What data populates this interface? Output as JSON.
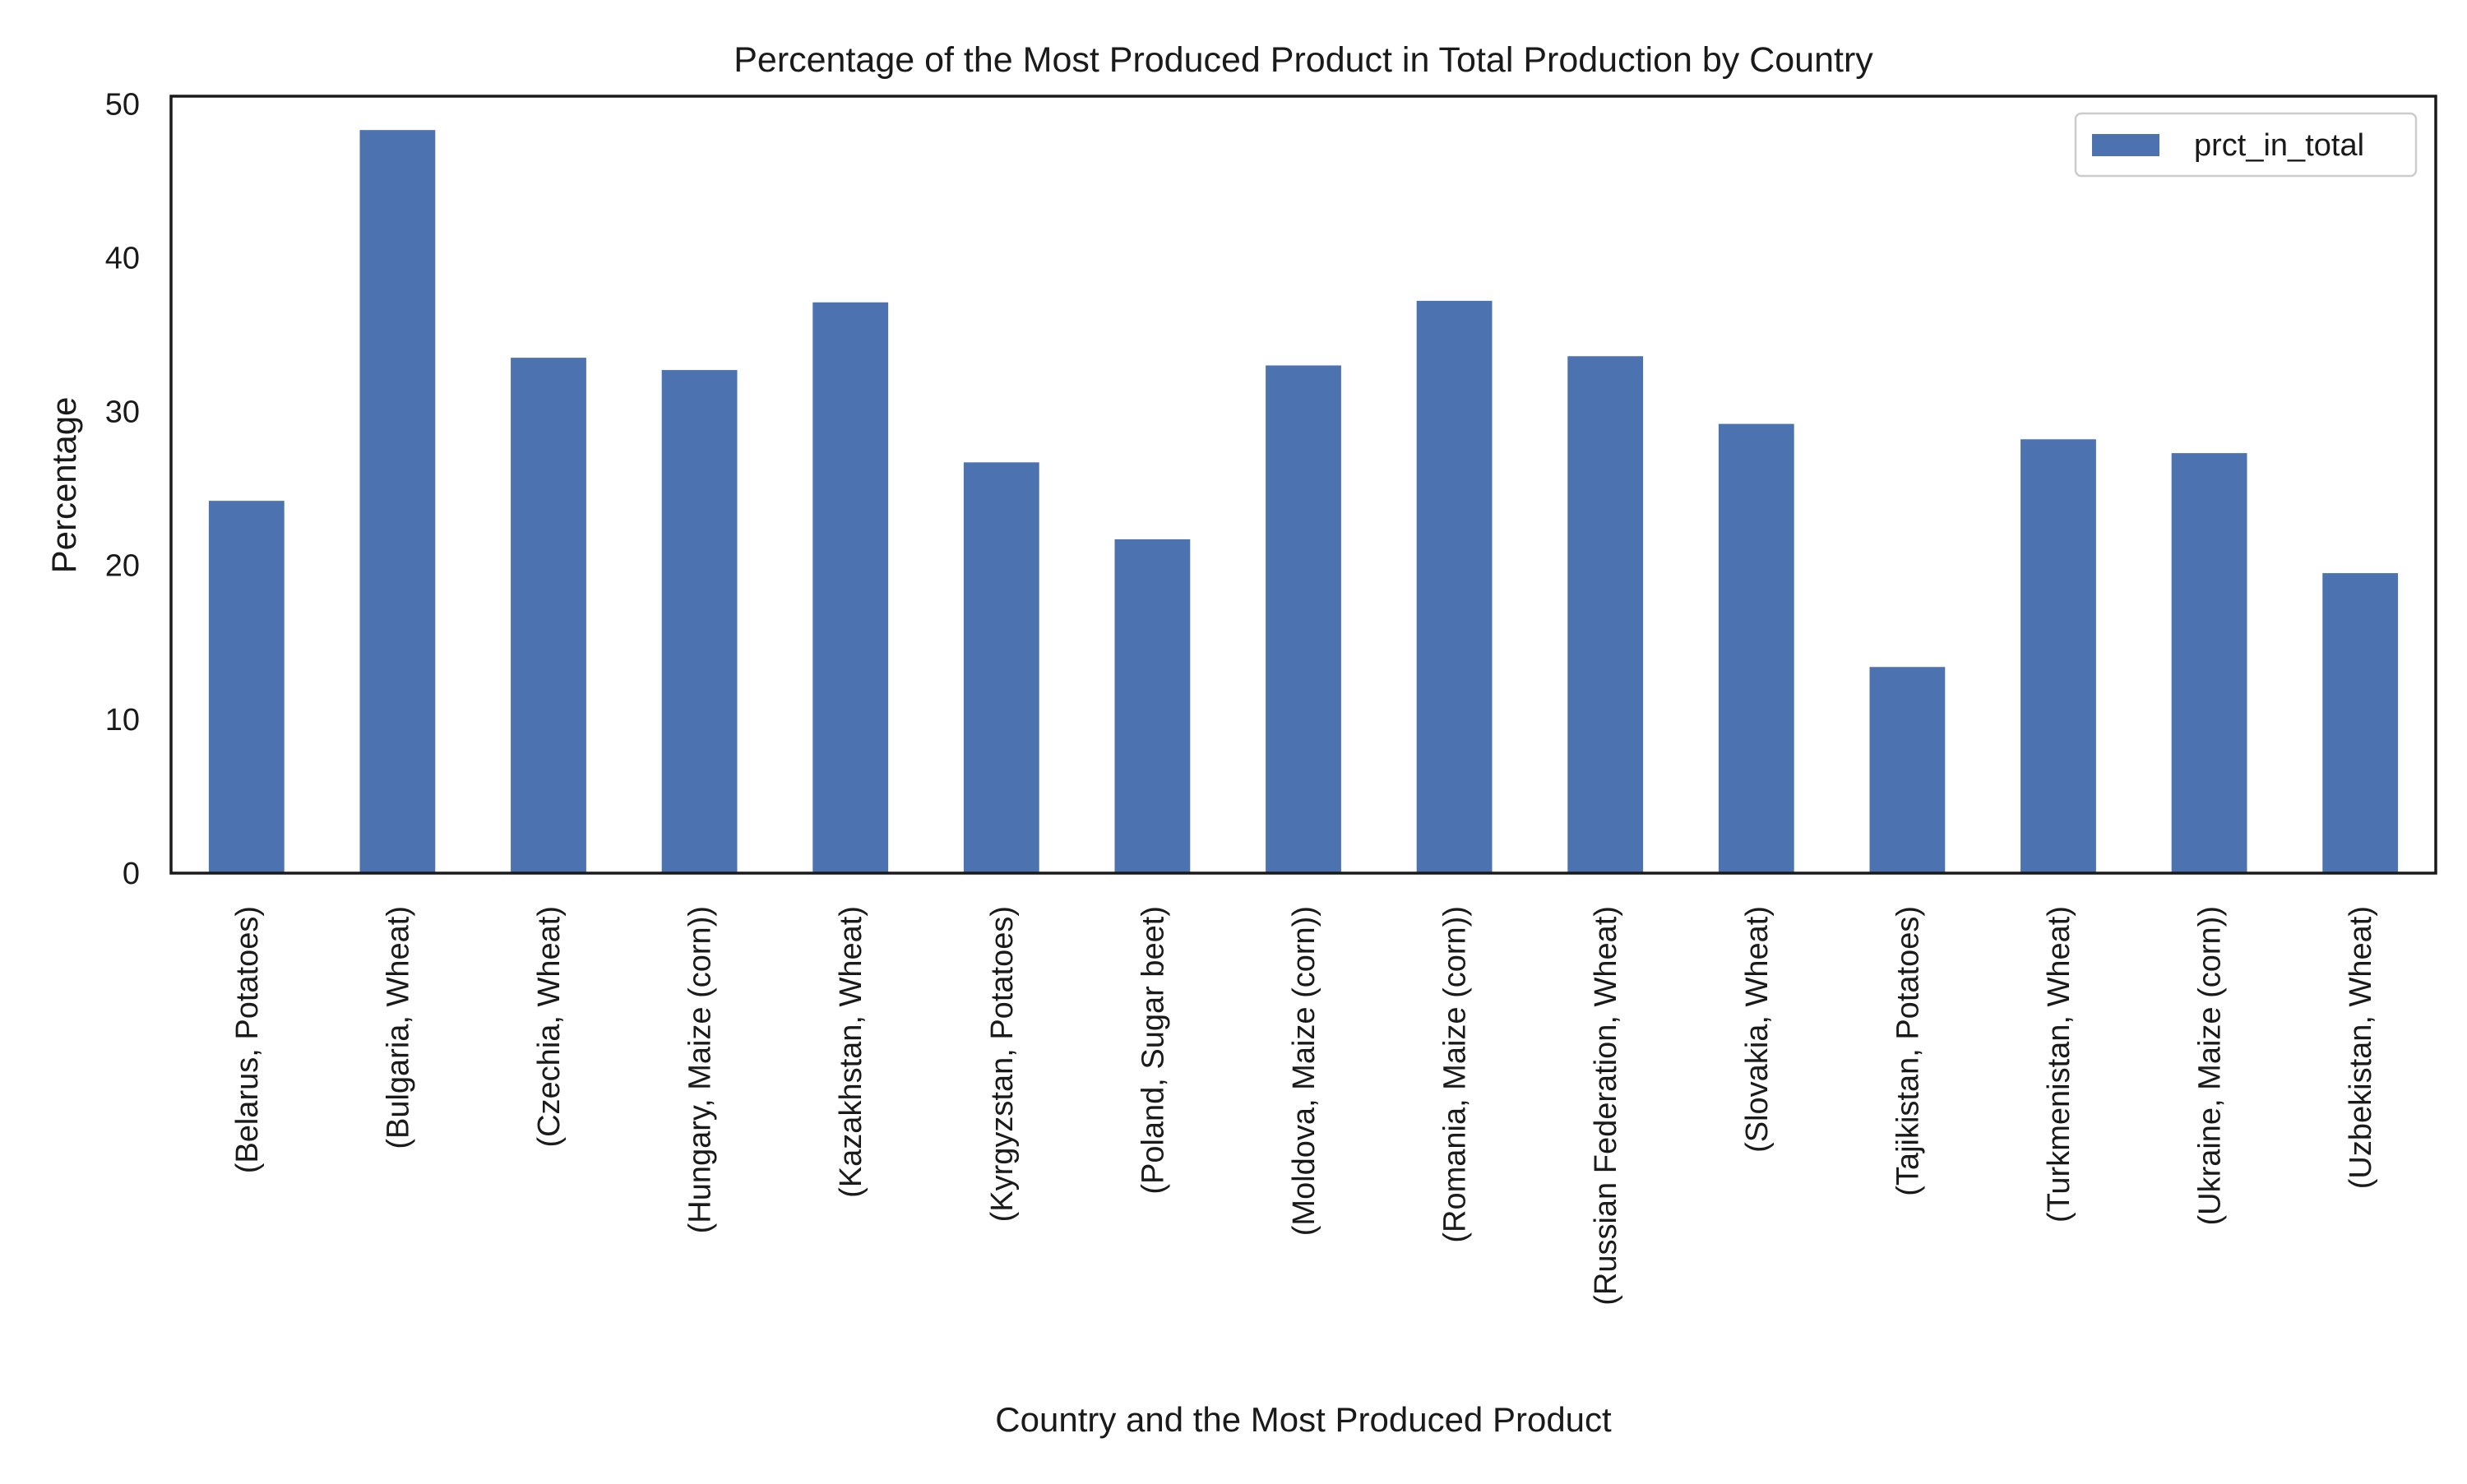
{
  "chart_data": {
    "type": "bar",
    "title": "Percentage of the Most Produced Product in Total Production by Country",
    "xlabel": "Country and the Most Produced Product",
    "ylabel": "Percentage",
    "ylim": [
      0,
      50.5
    ],
    "yticks": [
      0,
      10,
      20,
      30,
      40,
      50
    ],
    "grid": false,
    "legend_position": "top-right",
    "bar_color": "#4c72b0",
    "categories": [
      "(Belarus, Potatoes)",
      "(Bulgaria, Wheat)",
      "(Czechia, Wheat)",
      "(Hungary, Maize (corn))",
      "(Kazakhstan, Wheat)",
      "(Kyrgyzstan, Potatoes)",
      "(Poland, Sugar beet)",
      "(Moldova, Maize (corn))",
      "(Romania, Maize (corn))",
      "(Russian Federation, Wheat)",
      "(Slovakia, Wheat)",
      "(Tajikistan, Potatoes)",
      "(Turkmenistan, Wheat)",
      "(Ukraine, Maize (corn))",
      "(Uzbekistan, Wheat)"
    ],
    "series": [
      {
        "name": "prct_in_total",
        "values": [
          24.2,
          48.3,
          33.5,
          32.7,
          37.1,
          26.7,
          21.7,
          33.0,
          37.2,
          33.6,
          29.2,
          13.4,
          28.2,
          27.3,
          19.5
        ]
      }
    ]
  }
}
